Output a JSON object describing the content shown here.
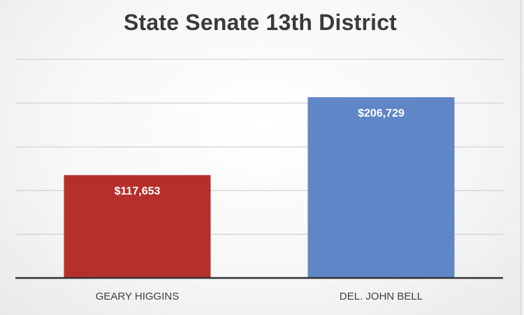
{
  "chart_data": {
    "type": "bar",
    "title": "State Senate 13th District",
    "xlabel": "",
    "ylabel": "",
    "categories": [
      "GEARY HIGGINS",
      "DEL. JOHN BELL"
    ],
    "values": [
      117653,
      206729
    ],
    "value_labels": [
      "$117,653",
      "$206,729"
    ],
    "bar_colors": [
      "#b52f2b",
      "#5f86c6"
    ],
    "ylim": [
      0,
      250000
    ],
    "grid": true,
    "legend": "none"
  }
}
